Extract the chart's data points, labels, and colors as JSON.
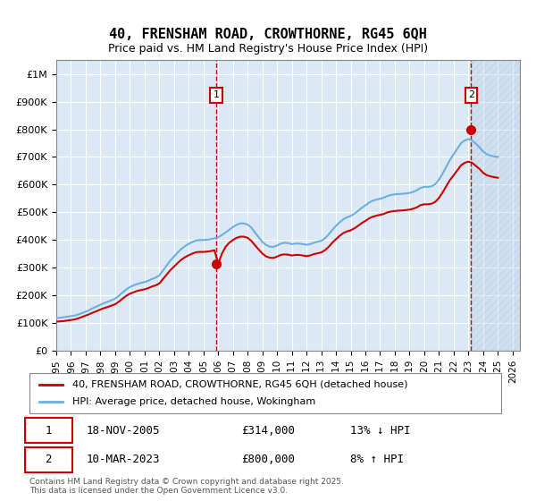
{
  "title": "40, FRENSHAM ROAD, CROWTHORNE, RG45 6QH",
  "subtitle": "Price paid vs. HM Land Registry's House Price Index (HPI)",
  "ylabel_ticks": [
    "£0",
    "£100K",
    "£200K",
    "£300K",
    "£400K",
    "£500K",
    "£600K",
    "£700K",
    "£800K",
    "£900K",
    "£1M"
  ],
  "ytick_values": [
    0,
    100000,
    200000,
    300000,
    400000,
    500000,
    600000,
    700000,
    800000,
    900000,
    1000000
  ],
  "ylim": [
    0,
    1050000
  ],
  "xlim_start": 1995.0,
  "xlim_end": 2026.5,
  "sale1_x": 2005.88,
  "sale1_y": 314000,
  "sale2_x": 2023.19,
  "sale2_y": 800000,
  "sale1_label": "1",
  "sale2_label": "2",
  "sale1_date": "18-NOV-2005",
  "sale1_price": "£314,000",
  "sale1_hpi": "13% ↓ HPI",
  "sale2_date": "10-MAR-2023",
  "sale2_price": "£800,000",
  "sale2_hpi": "8% ↑ HPI",
  "hpi_color": "#6ab0e0",
  "price_color": "#cc0000",
  "vline_color": "#cc0000",
  "bg_color": "#dce9f5",
  "plot_bg": "#dce9f5",
  "hatch_color": "#c8d8e8",
  "legend_label_price": "40, FRENSHAM ROAD, CROWTHORNE, RG45 6QH (detached house)",
  "legend_label_hpi": "HPI: Average price, detached house, Wokingham",
  "footer": "Contains HM Land Registry data © Crown copyright and database right 2025.\nThis data is licensed under the Open Government Licence v3.0.",
  "hpi_data_x": [
    1995.0,
    1995.25,
    1995.5,
    1995.75,
    1996.0,
    1996.25,
    1996.5,
    1996.75,
    1997.0,
    1997.25,
    1997.5,
    1997.75,
    1998.0,
    1998.25,
    1998.5,
    1998.75,
    1999.0,
    1999.25,
    1999.5,
    1999.75,
    2000.0,
    2000.25,
    2000.5,
    2000.75,
    2001.0,
    2001.25,
    2001.5,
    2001.75,
    2002.0,
    2002.25,
    2002.5,
    2002.75,
    2003.0,
    2003.25,
    2003.5,
    2003.75,
    2004.0,
    2004.25,
    2004.5,
    2004.75,
    2005.0,
    2005.25,
    2005.5,
    2005.75,
    2006.0,
    2006.25,
    2006.5,
    2006.75,
    2007.0,
    2007.25,
    2007.5,
    2007.75,
    2008.0,
    2008.25,
    2008.5,
    2008.75,
    2009.0,
    2009.25,
    2009.5,
    2009.75,
    2010.0,
    2010.25,
    2010.5,
    2010.75,
    2011.0,
    2011.25,
    2011.5,
    2011.75,
    2012.0,
    2012.25,
    2012.5,
    2012.75,
    2013.0,
    2013.25,
    2013.5,
    2013.75,
    2014.0,
    2014.25,
    2014.5,
    2014.75,
    2015.0,
    2015.25,
    2015.5,
    2015.75,
    2016.0,
    2016.25,
    2016.5,
    2016.75,
    2017.0,
    2017.25,
    2017.5,
    2017.75,
    2018.0,
    2018.25,
    2018.5,
    2018.75,
    2019.0,
    2019.25,
    2019.5,
    2019.75,
    2020.0,
    2020.25,
    2020.5,
    2020.75,
    2021.0,
    2021.25,
    2021.5,
    2021.75,
    2022.0,
    2022.25,
    2022.5,
    2022.75,
    2023.0,
    2023.25,
    2023.5,
    2023.75,
    2024.0,
    2024.25,
    2024.5,
    2024.75,
    2025.0
  ],
  "hpi_data_y": [
    118000,
    119000,
    121000,
    123000,
    125000,
    127000,
    131000,
    136000,
    141000,
    147000,
    154000,
    160000,
    166000,
    172000,
    177000,
    182000,
    188000,
    198000,
    210000,
    221000,
    230000,
    236000,
    241000,
    245000,
    248000,
    253000,
    259000,
    264000,
    272000,
    290000,
    308000,
    326000,
    340000,
    355000,
    368000,
    378000,
    386000,
    393000,
    398000,
    400000,
    400000,
    401000,
    403000,
    406000,
    410000,
    418000,
    427000,
    437000,
    447000,
    455000,
    460000,
    460000,
    456000,
    445000,
    427000,
    410000,
    393000,
    382000,
    376000,
    375000,
    380000,
    387000,
    390000,
    389000,
    385000,
    387000,
    387000,
    385000,
    383000,
    385000,
    390000,
    394000,
    397000,
    406000,
    420000,
    436000,
    451000,
    464000,
    475000,
    482000,
    487000,
    495000,
    505000,
    516000,
    525000,
    535000,
    542000,
    546000,
    549000,
    553000,
    559000,
    563000,
    565000,
    566000,
    567000,
    568000,
    570000,
    574000,
    580000,
    588000,
    592000,
    592000,
    594000,
    602000,
    618000,
    640000,
    665000,
    690000,
    710000,
    730000,
    750000,
    760000,
    765000,
    760000,
    748000,
    735000,
    720000,
    710000,
    705000,
    702000,
    700000
  ],
  "price_data_x": [
    1995.0,
    1995.25,
    1995.5,
    1995.75,
    1996.0,
    1996.25,
    1996.5,
    1996.75,
    1997.0,
    1997.25,
    1997.5,
    1997.75,
    1998.0,
    1998.25,
    1998.5,
    1998.75,
    1999.0,
    1999.25,
    1999.5,
    1999.75,
    2000.0,
    2000.25,
    2000.5,
    2000.75,
    2001.0,
    2001.25,
    2001.5,
    2001.75,
    2002.0,
    2002.25,
    2002.5,
    2002.75,
    2003.0,
    2003.25,
    2003.5,
    2003.75,
    2004.0,
    2004.25,
    2004.5,
    2004.75,
    2005.0,
    2005.25,
    2005.5,
    2005.75,
    2006.0,
    2006.25,
    2006.5,
    2006.75,
    2007.0,
    2007.25,
    2007.5,
    2007.75,
    2008.0,
    2008.25,
    2008.5,
    2008.75,
    2009.0,
    2009.25,
    2009.5,
    2009.75,
    2010.0,
    2010.25,
    2010.5,
    2010.75,
    2011.0,
    2011.25,
    2011.5,
    2011.75,
    2012.0,
    2012.25,
    2012.5,
    2012.75,
    2013.0,
    2013.25,
    2013.5,
    2013.75,
    2014.0,
    2014.25,
    2014.5,
    2014.75,
    2015.0,
    2015.25,
    2015.5,
    2015.75,
    2016.0,
    2016.25,
    2016.5,
    2016.75,
    2017.0,
    2017.25,
    2017.5,
    2017.75,
    2018.0,
    2018.25,
    2018.5,
    2018.75,
    2019.0,
    2019.25,
    2019.5,
    2019.75,
    2020.0,
    2020.25,
    2020.5,
    2020.75,
    2021.0,
    2021.25,
    2021.5,
    2021.75,
    2022.0,
    2022.25,
    2022.5,
    2022.75,
    2023.0,
    2023.25,
    2023.5,
    2023.75,
    2024.0,
    2024.25,
    2024.5,
    2024.75,
    2025.0
  ],
  "price_data_y": [
    105000,
    106000,
    107000,
    109000,
    111000,
    113000,
    117000,
    122000,
    127000,
    132000,
    138000,
    143000,
    149000,
    154000,
    158000,
    163000,
    168000,
    177000,
    188000,
    198000,
    206000,
    211000,
    216000,
    219000,
    222000,
    226000,
    232000,
    236000,
    243000,
    259000,
    275000,
    291000,
    304000,
    317000,
    329000,
    338000,
    345000,
    351000,
    356000,
    357000,
    357000,
    358000,
    360000,
    363000,
    314000,
    350000,
    375000,
    390000,
    400000,
    408000,
    412000,
    412000,
    408000,
    397000,
    381000,
    366000,
    351000,
    341000,
    336000,
    335000,
    340000,
    346000,
    348000,
    347000,
    344000,
    346000,
    346000,
    344000,
    342000,
    344000,
    349000,
    352000,
    355000,
    363000,
    375000,
    390000,
    403000,
    415000,
    425000,
    431000,
    435000,
    442000,
    451000,
    461000,
    469000,
    478000,
    484000,
    488000,
    491000,
    494000,
    500000,
    503000,
    505000,
    506000,
    507000,
    508000,
    510000,
    513000,
    518000,
    526000,
    529000,
    529000,
    531000,
    538000,
    552000,
    572000,
    595000,
    617000,
    634000,
    652000,
    670000,
    679000,
    683000,
    679000,
    668000,
    657000,
    643000,
    634000,
    630000,
    627000,
    625000
  ],
  "xtick_years": [
    1995,
    1996,
    1997,
    1998,
    1999,
    2000,
    2001,
    2002,
    2003,
    2004,
    2005,
    2006,
    2007,
    2008,
    2009,
    2010,
    2011,
    2012,
    2013,
    2014,
    2015,
    2016,
    2017,
    2018,
    2019,
    2020,
    2021,
    2022,
    2023,
    2024,
    2025,
    2026
  ]
}
